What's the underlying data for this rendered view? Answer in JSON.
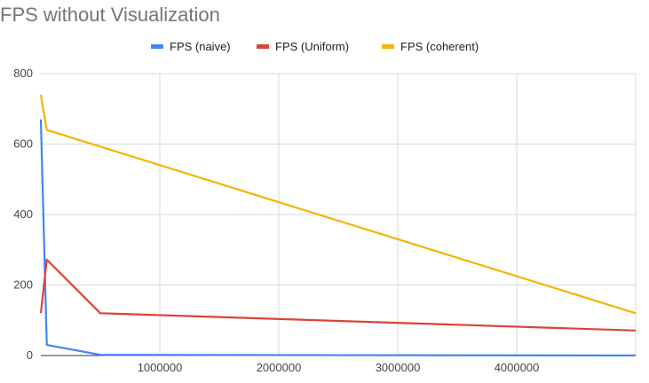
{
  "chart_data": {
    "type": "line",
    "title": "FPS without Visualization",
    "xlabel": "",
    "ylabel": "",
    "xlim": [
      0,
      5000000
    ],
    "ylim": [
      0,
      800
    ],
    "x_ticks": [
      1000000,
      2000000,
      3000000,
      4000000
    ],
    "x_tick_labels": [
      "1000000",
      "2000000",
      "3000000",
      "4000000"
    ],
    "y_ticks": [
      0,
      200,
      400,
      600,
      800
    ],
    "y_tick_labels": [
      "0",
      "200",
      "400",
      "600",
      "800"
    ],
    "grid": true,
    "legend_position": "top",
    "series": [
      {
        "name": "FPS (naive)",
        "color": "#4285f4",
        "points": [
          [
            0,
            670
          ],
          [
            50000,
            30
          ],
          [
            500000,
            2
          ],
          [
            5000000,
            0
          ]
        ]
      },
      {
        "name": "FPS (Uniform)",
        "color": "#db4437",
        "points": [
          [
            0,
            120
          ],
          [
            50000,
            272
          ],
          [
            500000,
            120
          ],
          [
            5000000,
            71
          ]
        ]
      },
      {
        "name": "FPS (coherent)",
        "color": "#f4b400",
        "points": [
          [
            0,
            740
          ],
          [
            50000,
            640
          ],
          [
            5000000,
            120
          ]
        ]
      }
    ]
  }
}
